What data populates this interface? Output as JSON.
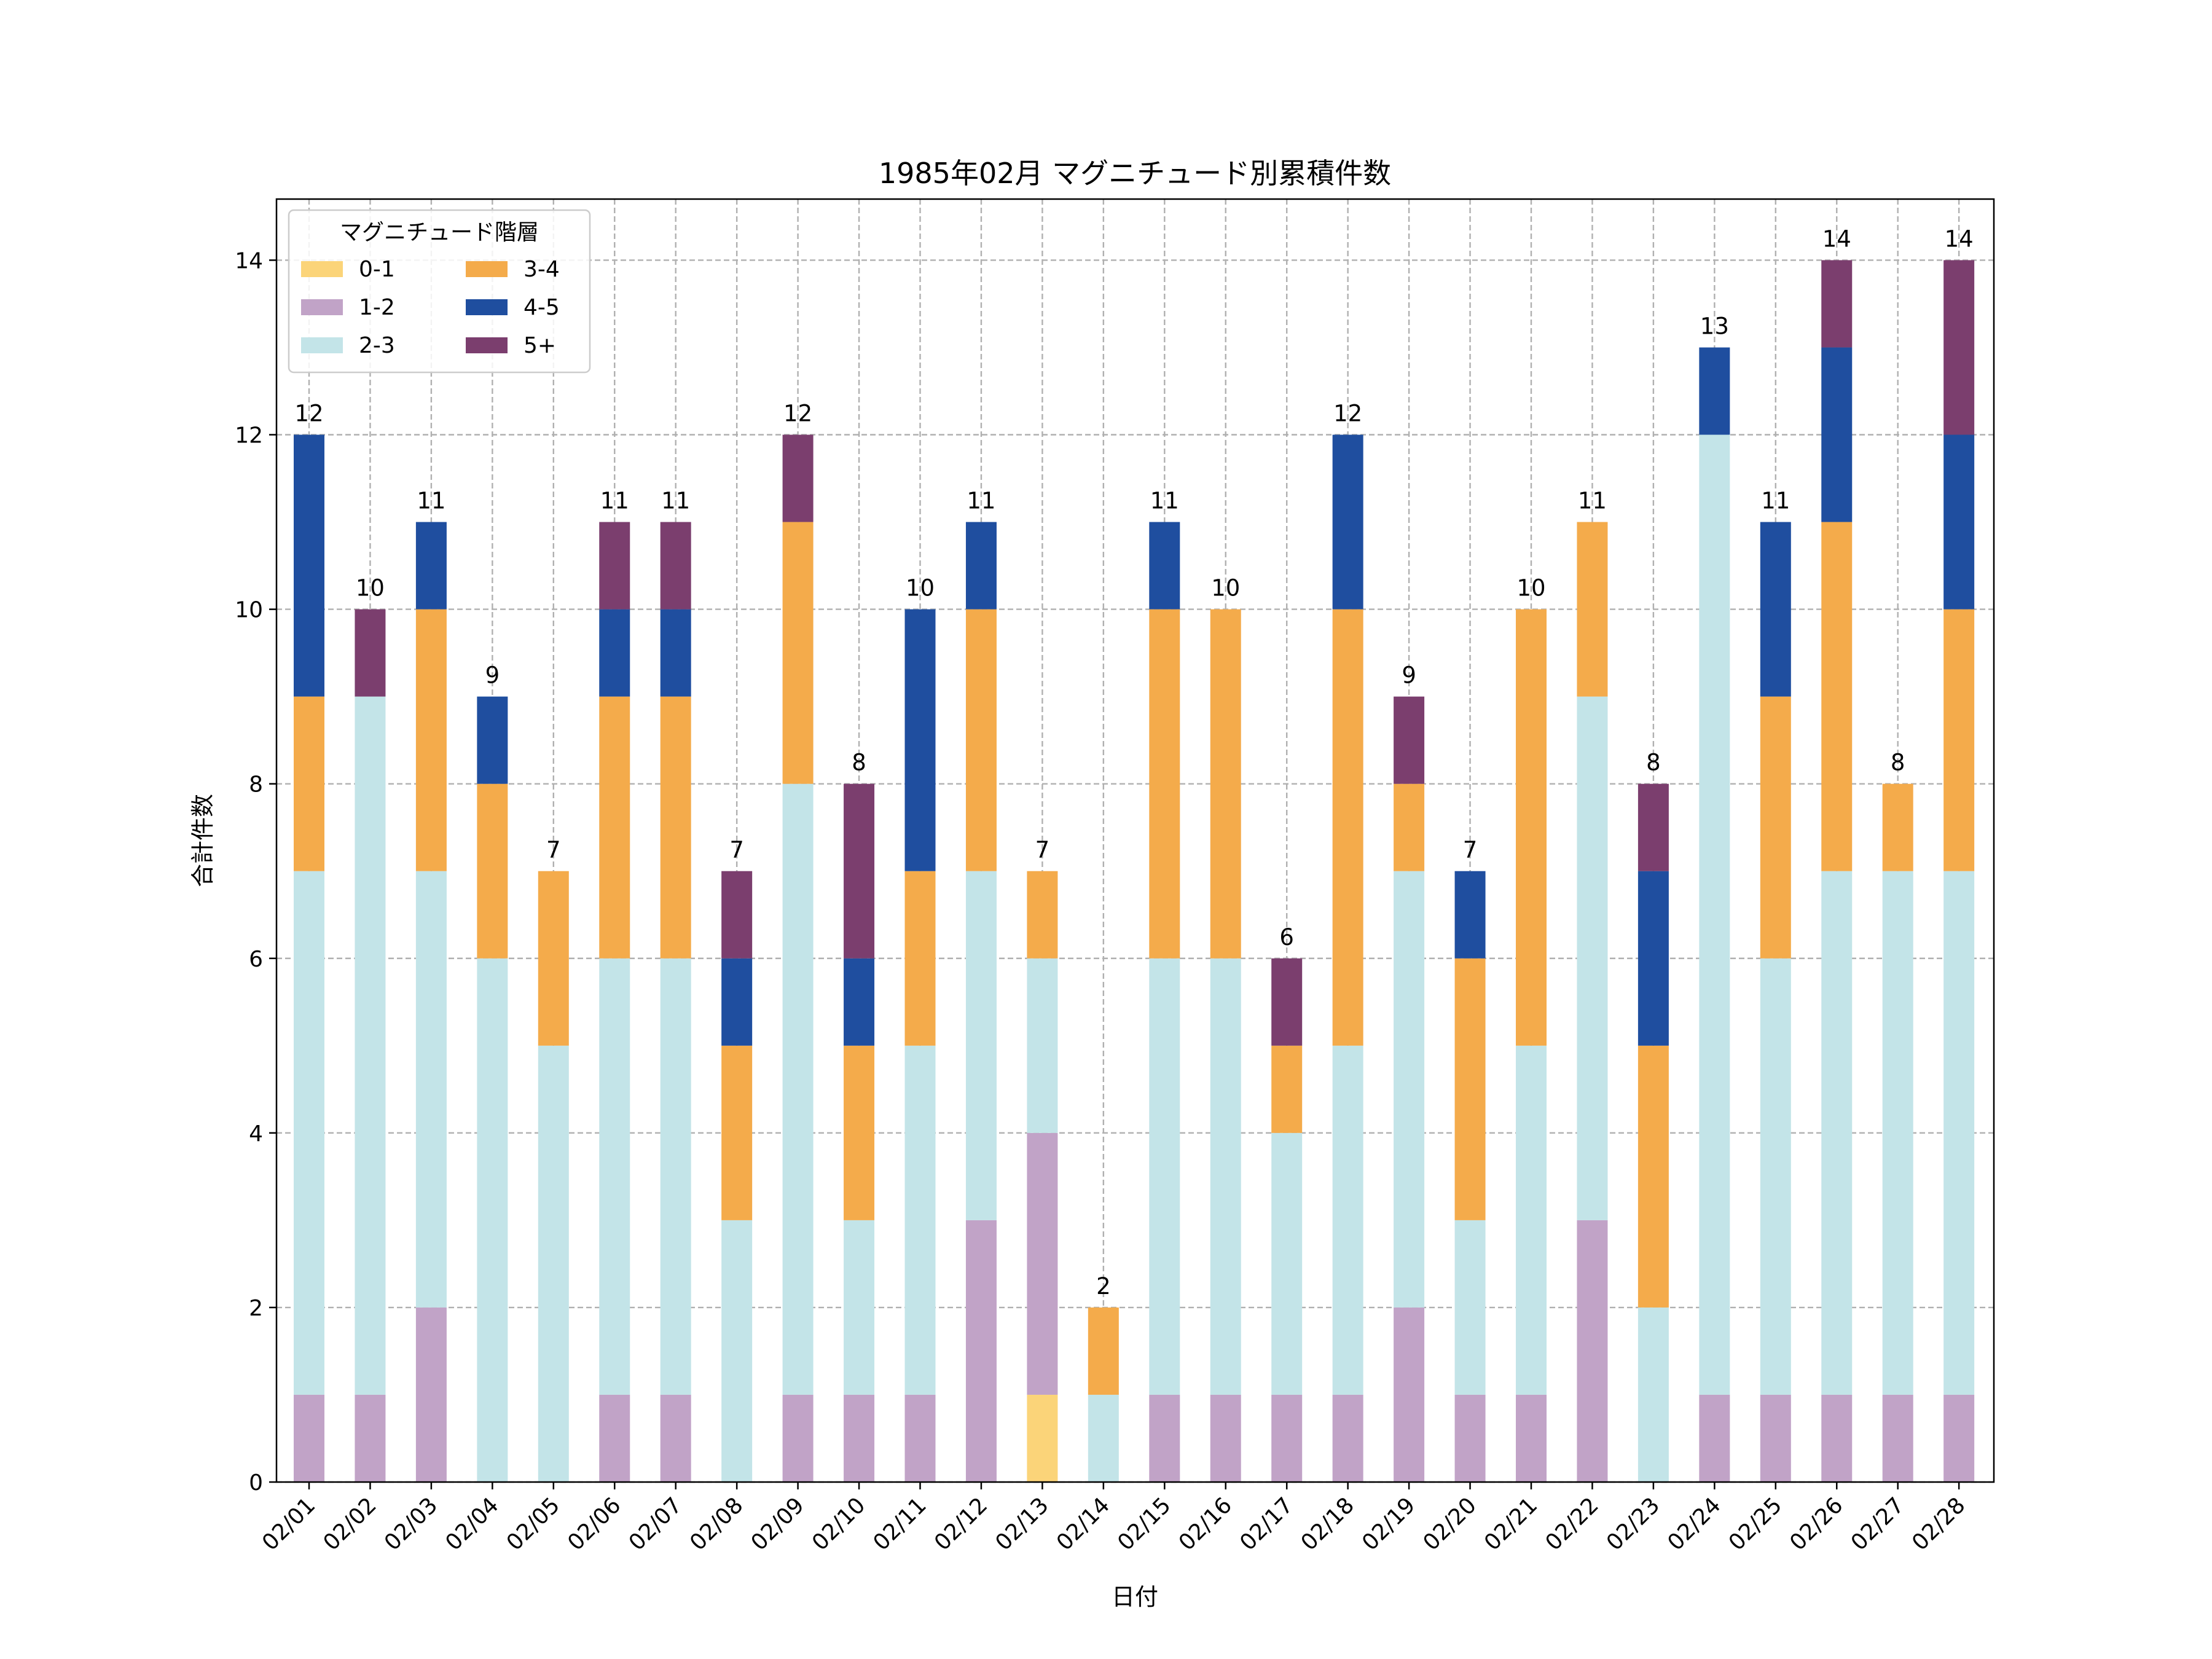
{
  "chart_data": {
    "type": "bar",
    "stacked": true,
    "title": "1985年02月 マグニチュード別累積件数",
    "xlabel": "日付",
    "ylabel": "合計件数",
    "ylim": [
      0,
      14.7
    ],
    "yticks": [
      0,
      2,
      4,
      6,
      8,
      10,
      12,
      14
    ],
    "grid": true,
    "legend_title": "マグニチュード階層",
    "legend_position": "top-left",
    "categories": [
      "02/01",
      "02/02",
      "02/03",
      "02/04",
      "02/05",
      "02/06",
      "02/07",
      "02/08",
      "02/09",
      "02/10",
      "02/11",
      "02/12",
      "02/13",
      "02/14",
      "02/15",
      "02/16",
      "02/17",
      "02/18",
      "02/19",
      "02/20",
      "02/21",
      "02/22",
      "02/23",
      "02/24",
      "02/25",
      "02/26",
      "02/27",
      "02/28"
    ],
    "series": [
      {
        "name": "0-1",
        "color": "#fbd479",
        "values": [
          0,
          0,
          0,
          0,
          0,
          0,
          0,
          0,
          0,
          0,
          0,
          0,
          1,
          0,
          0,
          0,
          0,
          0,
          0,
          0,
          0,
          0,
          0,
          0,
          0,
          0,
          0,
          0
        ]
      },
      {
        "name": "1-2",
        "color": "#c1a3c7",
        "values": [
          1,
          1,
          2,
          0,
          0,
          1,
          1,
          0,
          1,
          1,
          1,
          3,
          3,
          0,
          1,
          1,
          1,
          1,
          2,
          1,
          1,
          3,
          0,
          1,
          1,
          1,
          1,
          1
        ]
      },
      {
        "name": "2-3",
        "color": "#c3e4e8",
        "values": [
          6,
          8,
          5,
          6,
          5,
          5,
          5,
          3,
          7,
          2,
          4,
          4,
          2,
          1,
          5,
          5,
          3,
          4,
          5,
          2,
          4,
          6,
          2,
          11,
          5,
          6,
          6,
          6
        ]
      },
      {
        "name": "3-4",
        "color": "#f4ab4b",
        "values": [
          2,
          0,
          3,
          2,
          2,
          3,
          3,
          2,
          3,
          2,
          2,
          3,
          1,
          1,
          4,
          4,
          1,
          5,
          1,
          3,
          5,
          2,
          3,
          0,
          3,
          4,
          1,
          3
        ]
      },
      {
        "name": "4-5",
        "color": "#1f4e9f",
        "values": [
          3,
          0,
          1,
          1,
          0,
          1,
          1,
          1,
          0,
          1,
          3,
          1,
          0,
          0,
          1,
          0,
          0,
          2,
          0,
          1,
          0,
          0,
          2,
          1,
          2,
          2,
          0,
          2
        ]
      },
      {
        "name": "5+",
        "color": "#7b3e6e",
        "values": [
          0,
          1,
          0,
          0,
          0,
          1,
          1,
          1,
          1,
          2,
          0,
          0,
          0,
          0,
          0,
          0,
          1,
          0,
          1,
          0,
          0,
          0,
          1,
          0,
          0,
          1,
          0,
          2
        ]
      }
    ],
    "totals": [
      12,
      10,
      11,
      9,
      7,
      11,
      11,
      7,
      12,
      8,
      10,
      11,
      7,
      2,
      11,
      10,
      6,
      12,
      9,
      7,
      10,
      11,
      8,
      13,
      11,
      14,
      8,
      14
    ]
  }
}
